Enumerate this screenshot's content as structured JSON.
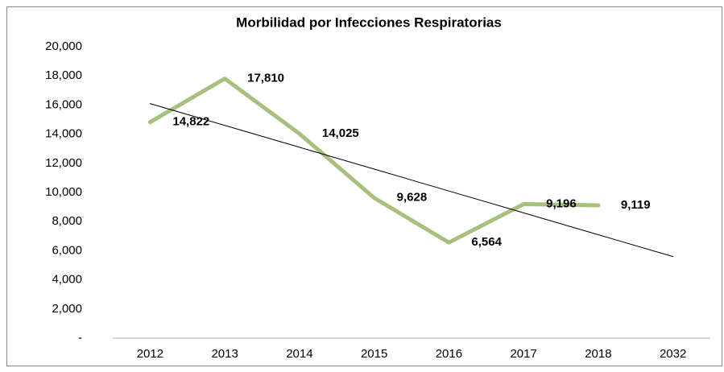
{
  "chart_data": {
    "type": "line",
    "title": "Morbilidad por Infecciones Respiratorias",
    "categories": [
      "2012",
      "2013",
      "2014",
      "2015",
      "2016",
      "2017",
      "2018",
      "2032"
    ],
    "values": [
      14822,
      17810,
      14025,
      9628,
      6564,
      9196,
      9119,
      null
    ],
    "value_labels": [
      "14,822",
      "17,810",
      "14,025",
      "9,628",
      "6,564",
      "9,196",
      "9,119",
      null
    ],
    "color": "#a8c07e",
    "trend": {
      "color": "#000000",
      "values": [
        16100,
        14600,
        13100,
        11600,
        10100,
        8600,
        7100,
        5600
      ]
    },
    "ylim": [
      0,
      20000
    ],
    "yticks": [
      {
        "value": 0,
        "label": "-"
      },
      {
        "value": 2000,
        "label": "2,000"
      },
      {
        "value": 4000,
        "label": "4,000"
      },
      {
        "value": 6000,
        "label": "6,000"
      },
      {
        "value": 8000,
        "label": "8,000"
      },
      {
        "value": 10000,
        "label": "10,000"
      },
      {
        "value": 12000,
        "label": "12,000"
      },
      {
        "value": 14000,
        "label": "14,000"
      },
      {
        "value": 16000,
        "label": "16,000"
      },
      {
        "value": 18000,
        "label": "18,000"
      },
      {
        "value": 20000,
        "label": "20,000"
      }
    ],
    "grid": false
  }
}
